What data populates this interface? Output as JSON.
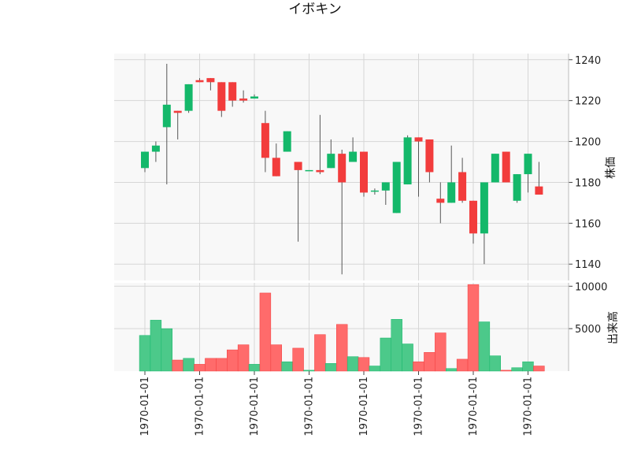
{
  "chart_data": {
    "type": "candlestick",
    "title": "イボキン",
    "colors": {
      "up": "#14b86a",
      "down": "#f23c3c",
      "wick": "#555555",
      "vol_up": "#4cc98a",
      "vol_down": "#ff6b6b",
      "panel_bg": "#f8f8f8",
      "grid": "#d6d6d6"
    },
    "price_axis": {
      "label": "株価",
      "ylim": [
        1132,
        1243
      ],
      "ticks": [
        1140,
        1160,
        1180,
        1200,
        1220,
        1240
      ]
    },
    "volume_axis": {
      "label": "出来高",
      "ylim": [
        0,
        10400
      ],
      "ticks": [
        5000,
        10000
      ]
    },
    "x_tick_labels": [
      "1970-01-01",
      "1970-01-01",
      "1970-01-01",
      "1970-01-01",
      "1970-01-01",
      "1970-01-01",
      "1970-01-01",
      "1970-01-01"
    ],
    "x_tick_every": 5,
    "candles": [
      {
        "o": 1187,
        "h": 1195,
        "l": 1185,
        "c": 1195,
        "v": 4200
      },
      {
        "o": 1195,
        "h": 1200,
        "l": 1190,
        "c": 1198,
        "v": 6000
      },
      {
        "o": 1207,
        "h": 1238,
        "l": 1179,
        "c": 1218,
        "v": 5000
      },
      {
        "o": 1215,
        "h": 1215,
        "l": 1201,
        "c": 1214,
        "v": 1300
      },
      {
        "o": 1215,
        "h": 1228,
        "l": 1214,
        "c": 1228,
        "v": 1500
      },
      {
        "o": 1230,
        "h": 1231,
        "l": 1229,
        "c": 1229,
        "v": 800
      },
      {
        "o": 1231,
        "h": 1231,
        "l": 1225,
        "c": 1229,
        "v": 1500
      },
      {
        "o": 1229,
        "h": 1229,
        "l": 1212,
        "c": 1215,
        "v": 1500
      },
      {
        "o": 1229,
        "h": 1229,
        "l": 1217,
        "c": 1220,
        "v": 2500
      },
      {
        "o": 1221,
        "h": 1225,
        "l": 1219,
        "c": 1220,
        "v": 3100
      },
      {
        "o": 1221,
        "h": 1223,
        "l": 1221,
        "c": 1222,
        "v": 800
      },
      {
        "o": 1209,
        "h": 1215,
        "l": 1185,
        "c": 1192,
        "v": 9200
      },
      {
        "o": 1192,
        "h": 1199,
        "l": 1183,
        "c": 1183,
        "v": 3100
      },
      {
        "o": 1195,
        "h": 1205,
        "l": 1195,
        "c": 1205,
        "v": 1100
      },
      {
        "o": 1190,
        "h": 1190,
        "l": 1151,
        "c": 1186,
        "v": 2700
      },
      {
        "o": 1186,
        "h": 1186,
        "l": 1186,
        "c": 1186,
        "v": 100
      },
      {
        "o": 1186,
        "h": 1213,
        "l": 1184,
        "c": 1185,
        "v": 4300
      },
      {
        "o": 1187,
        "h": 1201,
        "l": 1187,
        "c": 1194,
        "v": 900
      },
      {
        "o": 1194,
        "h": 1196,
        "l": 1135,
        "c": 1180,
        "v": 5500
      },
      {
        "o": 1190,
        "h": 1202,
        "l": 1190,
        "c": 1195,
        "v": 1700
      },
      {
        "o": 1195,
        "h": 1195,
        "l": 1173,
        "c": 1175,
        "v": 1600
      },
      {
        "o": 1176,
        "h": 1177,
        "l": 1174,
        "c": 1176,
        "v": 600
      },
      {
        "o": 1176,
        "h": 1180,
        "l": 1169,
        "c": 1180,
        "v": 3900
      },
      {
        "o": 1165,
        "h": 1190,
        "l": 1165,
        "c": 1190,
        "v": 6100
      },
      {
        "o": 1179,
        "h": 1203,
        "l": 1179,
        "c": 1202,
        "v": 3200
      },
      {
        "o": 1202,
        "h": 1202,
        "l": 1173,
        "c": 1200,
        "v": 1100
      },
      {
        "o": 1201,
        "h": 1201,
        "l": 1180,
        "c": 1185,
        "v": 2200
      },
      {
        "o": 1172,
        "h": 1180,
        "l": 1160,
        "c": 1170,
        "v": 4500
      },
      {
        "o": 1170,
        "h": 1198,
        "l": 1170,
        "c": 1180,
        "v": 300
      },
      {
        "o": 1185,
        "h": 1192,
        "l": 1170,
        "c": 1171,
        "v": 1400
      },
      {
        "o": 1171,
        "h": 1171,
        "l": 1150,
        "c": 1155,
        "v": 10200
      },
      {
        "o": 1155,
        "h": 1180,
        "l": 1140,
        "c": 1180,
        "v": 5800
      },
      {
        "o": 1180,
        "h": 1194,
        "l": 1180,
        "c": 1194,
        "v": 1800
      },
      {
        "o": 1195,
        "h": 1195,
        "l": 1180,
        "c": 1180,
        "v": 100
      },
      {
        "o": 1171,
        "h": 1184,
        "l": 1170,
        "c": 1184,
        "v": 400
      },
      {
        "o": 1184,
        "h": 1194,
        "l": 1175,
        "c": 1194,
        "v": 1100
      },
      {
        "o": 1178,
        "h": 1190,
        "l": 1174,
        "c": 1174,
        "v": 600
      }
    ]
  }
}
